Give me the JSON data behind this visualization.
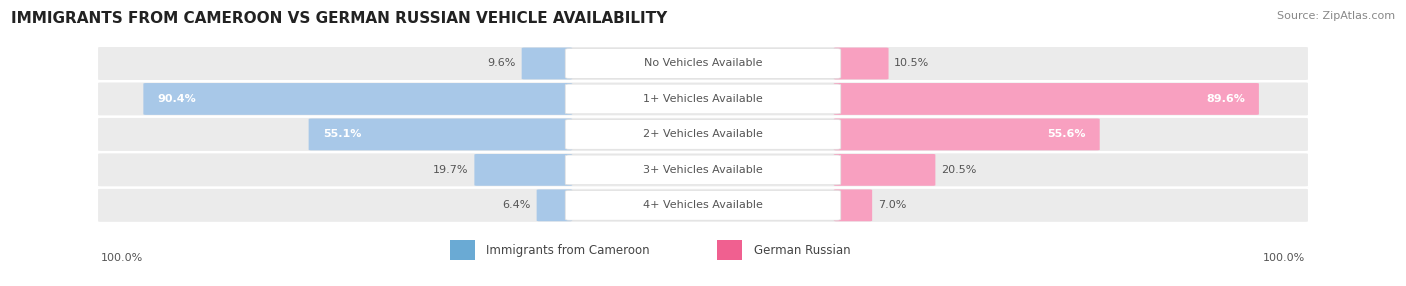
{
  "title": "IMMIGRANTS FROM CAMEROON VS GERMAN RUSSIAN VEHICLE AVAILABILITY",
  "source": "Source: ZipAtlas.com",
  "categories": [
    "No Vehicles Available",
    "1+ Vehicles Available",
    "2+ Vehicles Available",
    "3+ Vehicles Available",
    "4+ Vehicles Available"
  ],
  "cameroon_values": [
    9.6,
    90.4,
    55.1,
    19.7,
    6.4
  ],
  "german_russian_values": [
    10.5,
    89.6,
    55.6,
    20.5,
    7.0
  ],
  "max_value": 100.0,
  "cameroon_color": "#a8c8e8",
  "german_russian_color": "#f8a0c0",
  "cameroon_color_dark": "#6aaad4",
  "german_russian_color_dark": "#f06090",
  "row_bg_color": "#ebebeb",
  "title_fontsize": 11,
  "label_fontsize": 8.0,
  "axis_label_fontsize": 8,
  "legend_fontsize": 8.5,
  "source_fontsize": 8,
  "value_text_dark": "#555555",
  "value_text_light": "#ffffff"
}
